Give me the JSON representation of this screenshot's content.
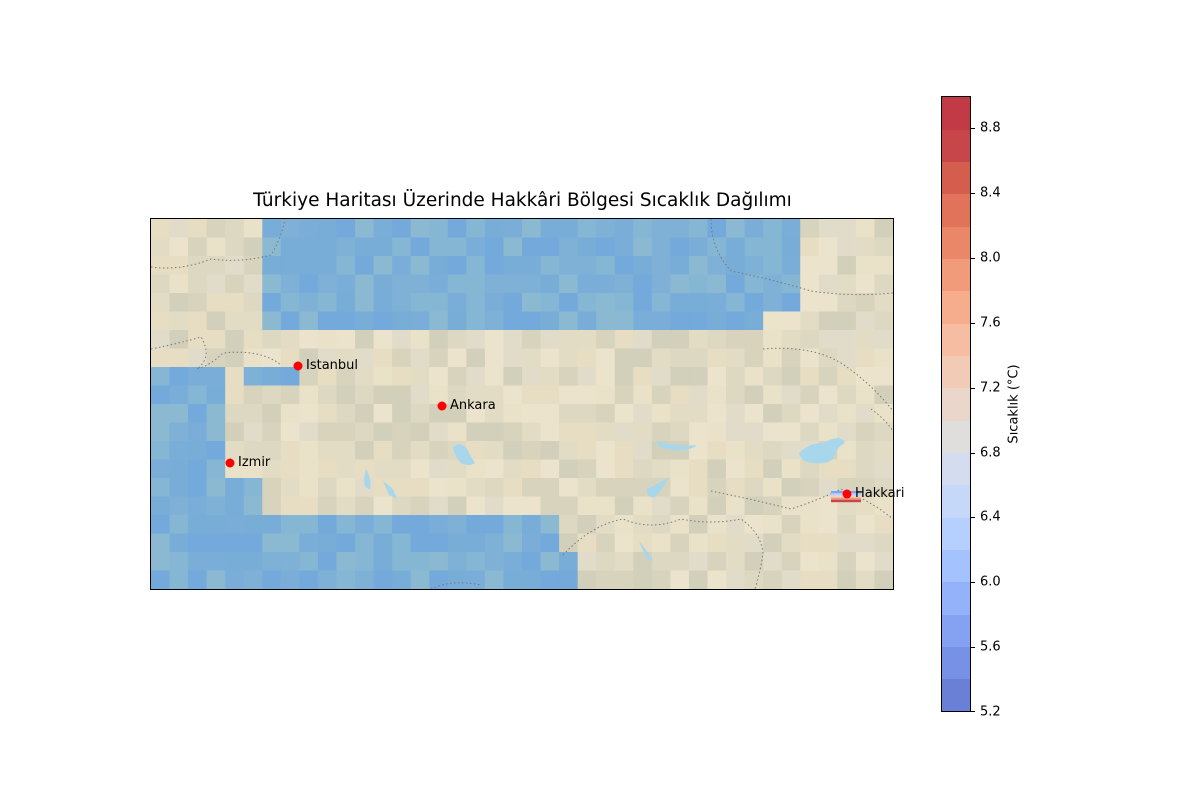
{
  "map": {
    "title": "Türkiye Haritası Üzerinde Hakkâri Bölgesi Sıcaklık Dağılımı",
    "land_color": "#e6ddc2",
    "sea_color": "#7fb1d6",
    "lake_color": "#a8d6ea",
    "border_color": "#777777",
    "marker_color": "#ff0000",
    "cities": [
      {
        "name": "Istanbul"
      },
      {
        "name": "Ankara"
      },
      {
        "name": "Izmir"
      },
      {
        "name": "Hakkari"
      }
    ]
  },
  "colorbar": {
    "label": "Sıcaklık (°C)",
    "colormap": "coolwarm",
    "min": 5.2,
    "max": 9.0,
    "levels": 19,
    "ticks": [
      "5.2",
      "5.6",
      "6.0",
      "6.4",
      "6.8",
      "7.2",
      "7.6",
      "8.0",
      "8.4",
      "8.8"
    ],
    "colors": [
      "#6a7fd6",
      "#7791e6",
      "#85a2f2",
      "#94b2fa",
      "#a4c2fe",
      "#b5cffe",
      "#c5d8f9",
      "#d4dcef",
      "#e0dedd",
      "#ebd6cc",
      "#f2cbb7",
      "#f6bda2",
      "#f5ad8e",
      "#f19b7b",
      "#ea8769",
      "#e0735a",
      "#d45d4e",
      "#c6464a",
      "#c13a45"
    ]
  }
}
